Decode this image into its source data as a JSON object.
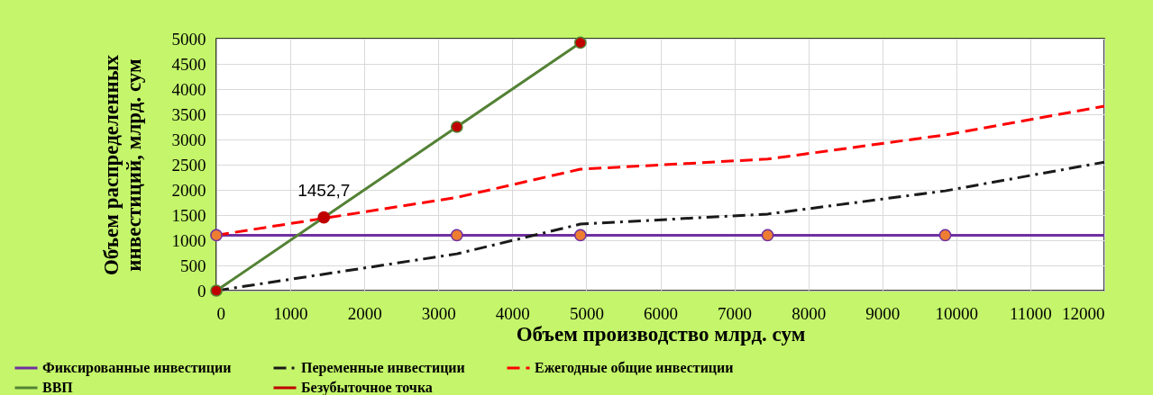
{
  "chart_data": {
    "type": "line",
    "xlabel": "Объем производство млрд. сум",
    "ylabel": "Объем распределенных инвестиций, млрд. сум",
    "xlim": [
      0,
      12000
    ],
    "xticks": [
      0,
      1000,
      2000,
      3000,
      4000,
      5000,
      6000,
      7000,
      8000,
      9000,
      10000,
      11000,
      12000
    ],
    "ylim": [
      0,
      5000
    ],
    "yticks": [
      0,
      500,
      1000,
      1500,
      2000,
      2500,
      3000,
      3500,
      4000,
      4500,
      5000
    ],
    "grid": true,
    "legend": "bottom",
    "series": [
      {
        "name": "Фиксированные инвестиции",
        "type": "line",
        "color": "#7030a0",
        "marker": "circle",
        "line_style": "solid",
        "x": [
          0,
          3250,
          4920,
          7450,
          9850,
          12000
        ],
        "values": [
          1100,
          1100,
          1100,
          1100,
          1100,
          1100
        ],
        "colors": [
          "#ed7d31",
          "#ed7d31",
          "#ed7d31",
          "#ed7d31",
          "#ed7d31",
          null
        ]
      },
      {
        "name": "Переменные инвестиции",
        "type": "line",
        "color": "#1a1a1a",
        "marker": "none",
        "line_style": "dashdot",
        "x": [
          0,
          3250,
          4920,
          7450,
          9850,
          12000
        ],
        "values": [
          0,
          730,
          1320,
          1520,
          1980,
          2550
        ]
      },
      {
        "name": "Ежегодные общие инвестиции",
        "type": "line",
        "color": "#ff0000",
        "marker": "none",
        "line_style": "dashed",
        "x": [
          0,
          3250,
          4920,
          7450,
          9850,
          12000
        ],
        "values": [
          1100,
          1850,
          2410,
          2610,
          3090,
          3660
        ]
      },
      {
        "name": "ВВП",
        "type": "line",
        "color": "#548235",
        "marker": "circle",
        "line_style": "solid",
        "x": [
          0,
          3250,
          4920
        ],
        "values": [
          0,
          3250,
          4920
        ],
        "colors": [
          "#c00000",
          "#c00000",
          "#c00000"
        ]
      },
      {
        "name": "Безубыточное точка",
        "type": "scatter",
        "color": "#c00000",
        "marker": "circle",
        "x": [
          1452.7
        ],
        "values": [
          1452.7
        ]
      }
    ],
    "annotations": [
      {
        "text": "1452,7",
        "x": 1452.7,
        "y": 1452.7
      }
    ]
  }
}
